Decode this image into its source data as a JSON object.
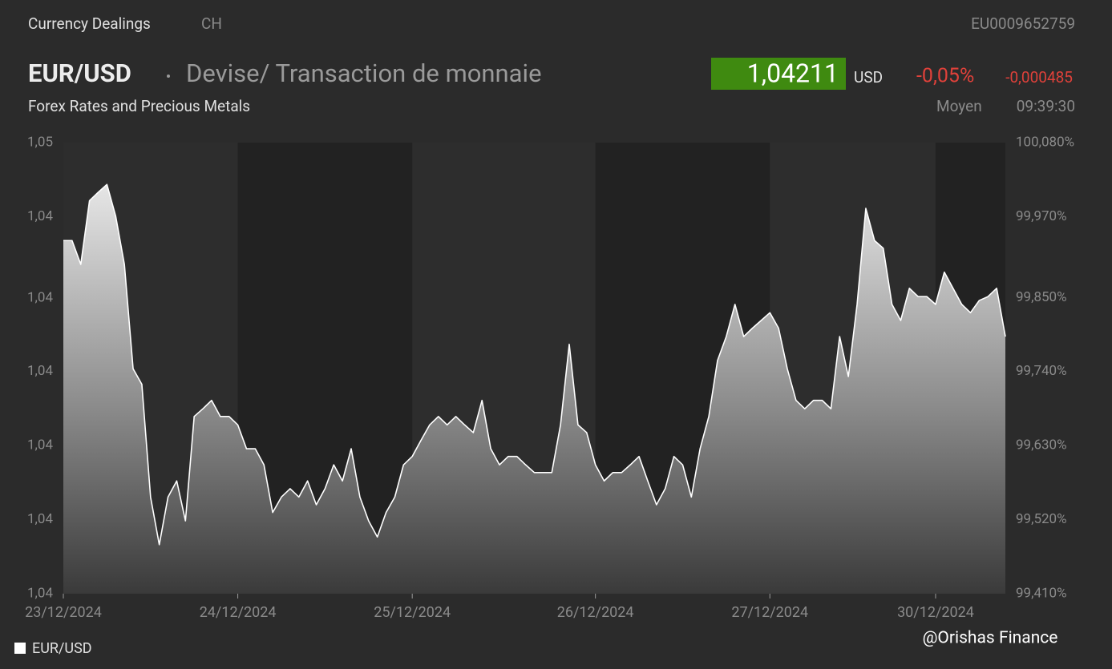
{
  "header": {
    "source": "Currency Dealings",
    "country": "CH",
    "isin": "EU0009652759",
    "symbol": "EUR/USD",
    "description": "Devise/ Transaction de monnaie",
    "price": "1,04211",
    "currency": "USD",
    "change_percent": "-0,05%",
    "change": "-0,000485",
    "subtitle": "Forex Rates and Precious Metals",
    "price_type": "Moyen",
    "time": "09:39:30"
  },
  "watermark": "@Orishas Finance",
  "chart_data": {
    "type": "area",
    "categories": [
      "23/12/2024",
      null,
      null,
      null,
      null,
      null,
      null,
      null,
      null,
      null,
      null,
      null,
      null,
      null,
      null,
      null,
      null,
      null,
      null,
      null,
      "24/12/2024",
      null,
      null,
      null,
      null,
      null,
      null,
      null,
      null,
      null,
      null,
      null,
      null,
      null,
      null,
      null,
      null,
      null,
      null,
      null,
      "25/12/2024",
      null,
      null,
      null,
      null,
      null,
      null,
      null,
      null,
      null,
      null,
      null,
      null,
      null,
      null,
      null,
      null,
      null,
      null,
      null,
      null,
      "26/12/2024",
      null,
      null,
      null,
      null,
      null,
      null,
      null,
      null,
      null,
      null,
      null,
      null,
      null,
      null,
      null,
      null,
      null,
      null,
      null,
      "27/12/2024",
      null,
      null,
      null,
      null,
      null,
      null,
      null,
      null,
      null,
      null,
      null,
      null,
      null,
      null,
      null,
      null,
      null,
      null,
      "30/12/2024",
      null,
      null,
      null,
      null,
      null,
      null,
      null,
      null
    ],
    "series": [
      {
        "name": "EUR/USD",
        "color": "#ffffff",
        "values": [
          1.0436,
          1.0436,
          1.04323,
          1.04422,
          1.04435,
          1.04447,
          1.04398,
          1.04323,
          1.04161,
          1.04137,
          1.03962,
          1.03888,
          1.03962,
          1.03987,
          1.03925,
          1.04087,
          1.04099,
          1.04112,
          1.04087,
          1.04087,
          1.04074,
          1.04037,
          1.04037,
          1.04012,
          1.03938,
          1.03962,
          1.03975,
          1.03962,
          1.03987,
          1.0395,
          1.03975,
          1.04012,
          1.03987,
          1.04037,
          1.03962,
          1.03925,
          1.039,
          1.03938,
          1.03962,
          1.04012,
          1.04025,
          1.0405,
          1.04074,
          1.04087,
          1.04074,
          1.04087,
          1.04074,
          1.04062,
          1.04112,
          1.04037,
          1.04012,
          1.04025,
          1.04025,
          1.04012,
          1.04,
          1.04,
          1.04,
          1.04074,
          1.04199,
          1.04074,
          1.04062,
          1.04012,
          1.03987,
          1.04,
          1.04,
          1.04012,
          1.04025,
          1.03987,
          1.0395,
          1.03975,
          1.04025,
          1.04012,
          1.03962,
          1.04037,
          1.04087,
          1.04174,
          1.04211,
          1.04261,
          1.04211,
          1.04224,
          1.04236,
          1.04248,
          1.04224,
          1.04161,
          1.04112,
          1.04099,
          1.04112,
          1.04112,
          1.04099,
          1.04211,
          1.04149,
          1.04261,
          1.0441,
          1.0436,
          1.04348,
          1.04261,
          1.04236,
          1.04286,
          1.04273,
          1.04273,
          1.04261,
          1.04311,
          1.04286,
          1.04261,
          1.04248,
          1.04267,
          1.04273,
          1.04286,
          1.04211
        ]
      }
    ],
    "ylim": [
      1.03812,
      1.04512
    ],
    "yticks": [
      {
        "value": 1.03812,
        "label": "1,04"
      },
      {
        "value": 1.03927,
        "label": "1,04"
      },
      {
        "value": 1.04042,
        "label": "1,04"
      },
      {
        "value": 1.04157,
        "label": "1,04"
      },
      {
        "value": 1.04271,
        "label": "1,04"
      },
      {
        "value": 1.04397,
        "label": "1,04"
      },
      {
        "value": 1.04512,
        "label": "1,05"
      }
    ],
    "y2lim": [
      99.41,
      100.08
    ],
    "y2ticks": [
      {
        "value": 99.41,
        "label": "99,410%"
      },
      {
        "value": 99.52,
        "label": "99,520%"
      },
      {
        "value": 99.63,
        "label": "99,630%"
      },
      {
        "value": 99.74,
        "label": "99,740%"
      },
      {
        "value": 99.85,
        "label": "99,850%"
      },
      {
        "value": 99.97,
        "label": "99,970%"
      },
      {
        "value": 100.08,
        "label": "100,080%"
      }
    ],
    "grid": false,
    "legend": "bottom-left"
  }
}
